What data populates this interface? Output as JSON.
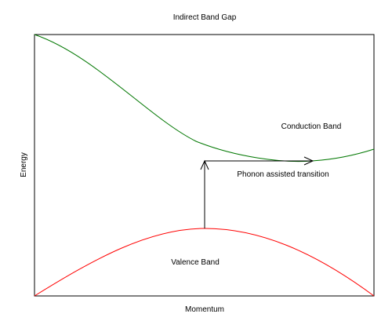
{
  "diagram": {
    "title": "Indirect Band Gap",
    "x_axis_label": "Momentum",
    "y_axis_label": "Energy",
    "conduction_band_label": "Conduction Band",
    "valence_band_label": "Valence Band",
    "transition_label": "Phonon assisted transition"
  },
  "colors": {
    "conduction_band": "#007700",
    "valence_band": "#ff0000",
    "transition_arrow": "#000000",
    "frame": "#000000"
  }
}
